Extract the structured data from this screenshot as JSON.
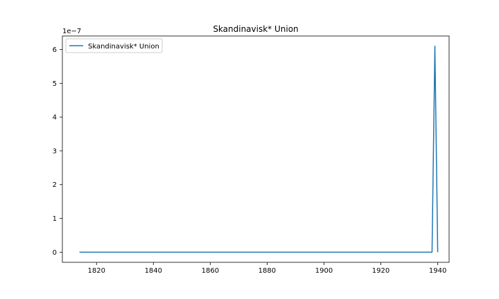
{
  "chart_data": {
    "type": "line",
    "title": "Skandinavisk* Union",
    "xlabel": "",
    "ylabel": "",
    "y_offset_label": "1e−7",
    "xlim": [
      1808,
      1944
    ],
    "ylim": [
      -3e-08,
      6.4e-07
    ],
    "x_ticks": [
      1820,
      1840,
      1860,
      1880,
      1900,
      1920,
      1940
    ],
    "x_tick_labels": [
      "1820",
      "1840",
      "1860",
      "1880",
      "1900",
      "1920",
      "1940"
    ],
    "y_ticks": [
      0,
      1e-07,
      2e-07,
      3e-07,
      4e-07,
      5e-07,
      6e-07
    ],
    "y_tick_labels": [
      "0",
      "1",
      "2",
      "3",
      "4",
      "5",
      "6"
    ],
    "grid": false,
    "legend_position": "upper-left",
    "series": [
      {
        "name": "Skandinavisk* Union",
        "color": "#1f77b4",
        "x": [
          1814,
          1938,
          1939,
          1940
        ],
        "y": [
          0,
          0,
          6.1e-07,
          0
        ]
      }
    ]
  }
}
